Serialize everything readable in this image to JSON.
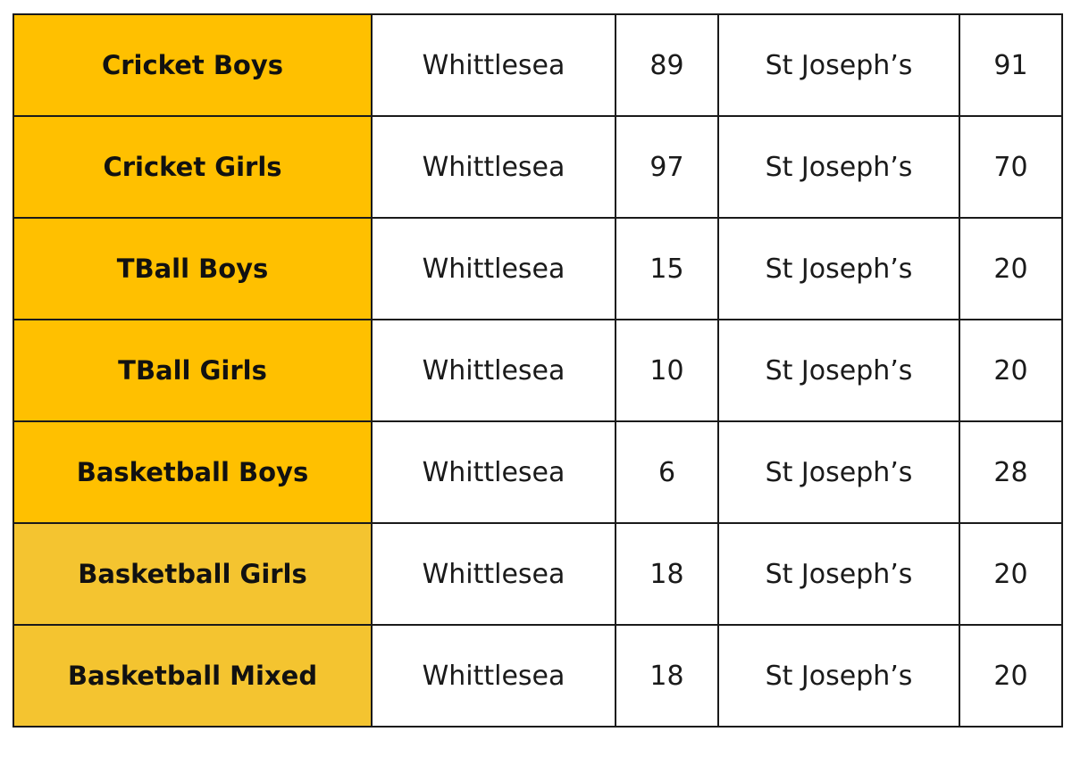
{
  "table": {
    "rows": [
      {
        "sport": "Cricket Boys",
        "team1": "Whittlesea",
        "score1": "89",
        "team2": "St Joseph’s",
        "score2": "91",
        "color": "#ffc000"
      },
      {
        "sport": "Cricket Girls",
        "team1": "Whittlesea",
        "score1": "97",
        "team2": "St Joseph’s",
        "score2": "70",
        "color": "#ffc000"
      },
      {
        "sport": "TBall Boys",
        "team1": "Whittlesea",
        "score1": "15",
        "team2": "St Joseph’s",
        "score2": "20",
        "color": "#ffc000"
      },
      {
        "sport": "TBall Girls",
        "team1": "Whittlesea",
        "score1": "10",
        "team2": "St Joseph’s",
        "score2": "20",
        "color": "#ffc000"
      },
      {
        "sport": "Basketball Boys",
        "team1": "Whittlesea",
        "score1": "6",
        "team2": "St Joseph’s",
        "score2": "28",
        "color": "#ffc000"
      },
      {
        "sport": "Basketball Girls",
        "team1": "Whittlesea",
        "score1": "18",
        "team2": "St Joseph’s",
        "score2": "20",
        "color": "#f4c430"
      },
      {
        "sport": "Basketball Mixed",
        "team1": "Whittlesea",
        "score1": "18",
        "team2": "St Joseph’s",
        "score2": "20",
        "color": "#f4c430"
      }
    ]
  }
}
